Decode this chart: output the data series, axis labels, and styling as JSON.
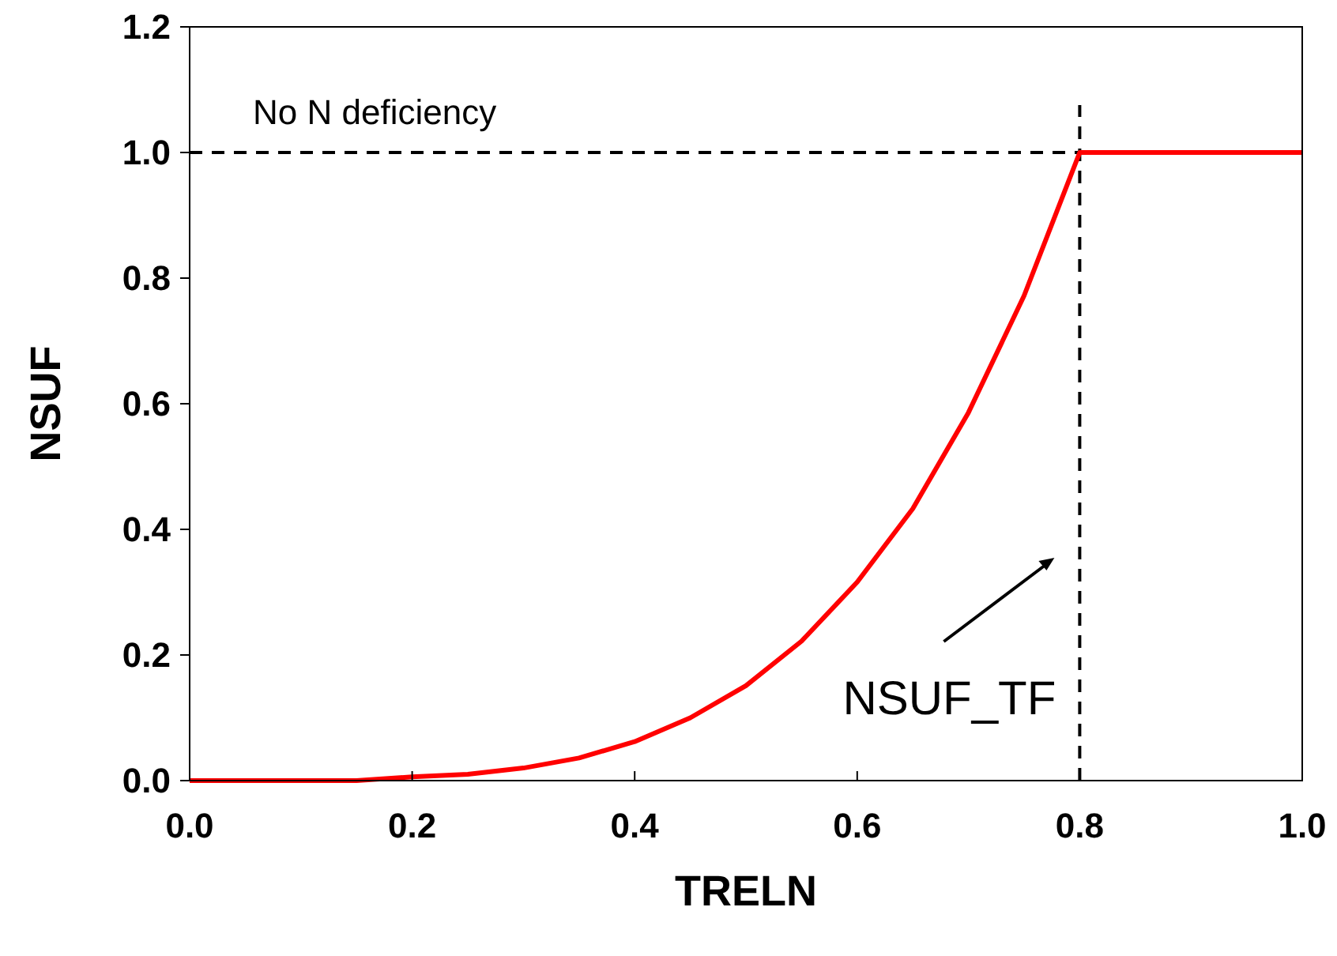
{
  "chart_data": {
    "type": "line",
    "xlabel": "TRELN",
    "ylabel": "NSUF",
    "xlim": [
      0,
      1
    ],
    "ylim": [
      0,
      1.2
    ],
    "xticks": [
      {
        "value": 0,
        "label": "0.0"
      },
      {
        "value": 0.2,
        "label": "0.2"
      },
      {
        "value": 0.4,
        "label": "0.4"
      },
      {
        "value": 0.6,
        "label": "0.6"
      },
      {
        "value": 0.8,
        "label": "0.8"
      },
      {
        "value": 1,
        "label": "1.0"
      }
    ],
    "yticks": [
      {
        "value": 0,
        "label": "0.0"
      },
      {
        "value": 0.2,
        "label": "0.2"
      },
      {
        "value": 0.4,
        "label": "0.4"
      },
      {
        "value": 0.6,
        "label": "0.6"
      },
      {
        "value": 0.8,
        "label": "0.8"
      },
      {
        "value": 1,
        "label": "1.0"
      },
      {
        "value": 1.2,
        "label": "1.2"
      }
    ],
    "x": [
      0,
      0.05,
      0.1,
      0.15,
      0.2,
      0.25,
      0.3,
      0.35,
      0.4,
      0.45,
      0.5,
      0.55,
      0.6,
      0.65,
      0.7,
      0.75,
      0.8,
      0.85,
      0.9,
      0.95,
      1.0
    ],
    "series": [
      {
        "color": "#ff0000",
        "values": [
          0,
          0,
          0,
          0,
          0.006,
          0.01,
          0.02,
          0.036,
          0.062,
          0.1,
          0.151,
          0.222,
          0.316,
          0.433,
          0.586,
          0.772,
          1.0,
          1.0,
          1.0,
          1.0,
          1.0
        ]
      }
    ],
    "ref_lines": [
      {
        "axis": "y",
        "value": 1.0,
        "label": "No N deficiency",
        "line_style": "dashed",
        "color": "#000000"
      },
      {
        "axis": "x",
        "value": 0.8,
        "label": "NSUF_TF",
        "line_style": "dashed",
        "color": "#000000"
      }
    ],
    "grid": false,
    "marker": "none",
    "line_style": "solid"
  }
}
